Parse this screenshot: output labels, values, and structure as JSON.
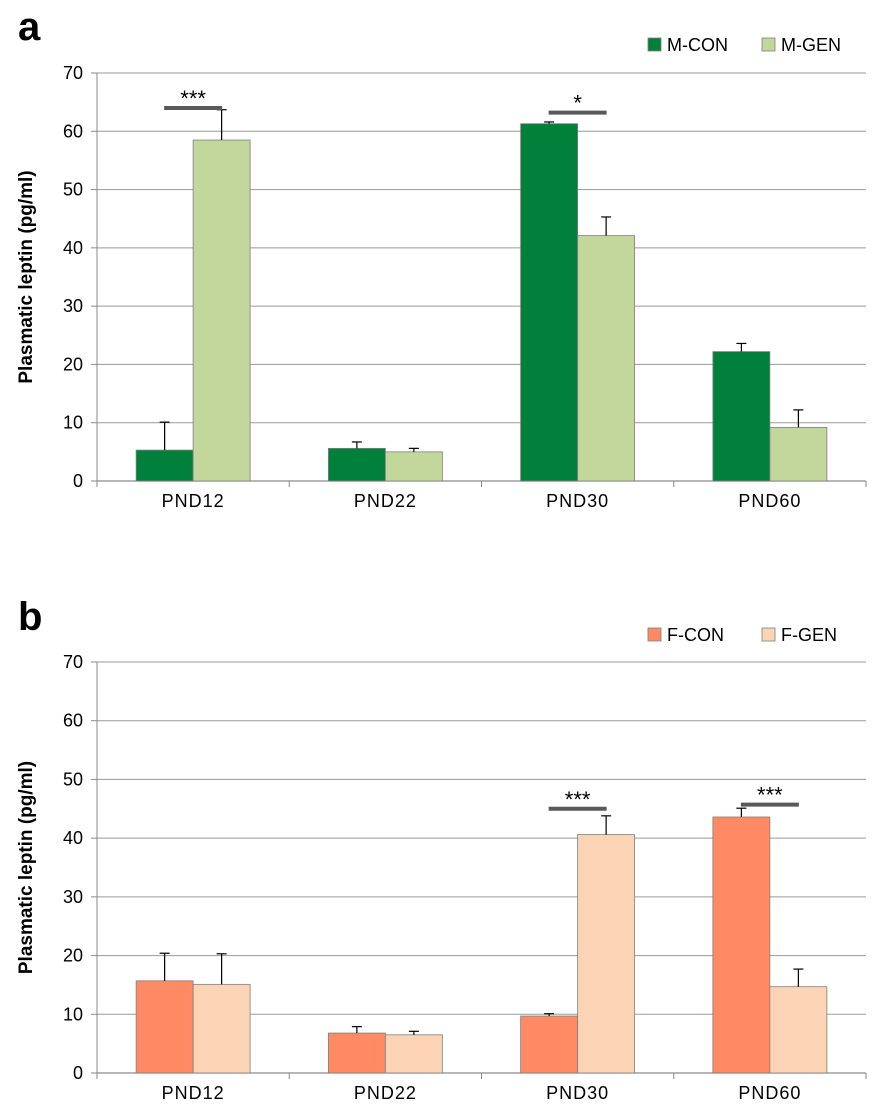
{
  "chart_data": [
    {
      "type": "bar",
      "panel_label": "a",
      "ylabel": "Plasmatic leptin (pg/ml)",
      "ylim": [
        0,
        70
      ],
      "yticks": [
        0,
        10,
        20,
        30,
        40,
        50,
        60,
        70
      ],
      "grid": true,
      "legend_position": "top-right",
      "categories": [
        "PND12",
        "PND22",
        "PND30",
        "PND60"
      ],
      "series": [
        {
          "name": "M-CON",
          "color": "#00803a",
          "values": [
            5.3,
            5.6,
            61.3,
            22.2
          ],
          "errors": [
            4.8,
            1.1,
            0.3,
            1.4
          ]
        },
        {
          "name": "M-GEN",
          "color": "#c3d69b",
          "values": [
            58.5,
            5.0,
            42.1,
            9.2
          ],
          "errors": [
            5.2,
            0.6,
            3.2,
            3.0
          ]
        }
      ],
      "significance": [
        {
          "category": "PND12",
          "label": "***",
          "y": 64
        },
        {
          "category": "PND30",
          "label": "*",
          "y": 63.2
        }
      ]
    },
    {
      "type": "bar",
      "panel_label": "b",
      "ylabel": "Plasmatic leptin (pg/ml)",
      "ylim": [
        0,
        70
      ],
      "yticks": [
        0,
        10,
        20,
        30,
        40,
        50,
        60,
        70
      ],
      "grid": true,
      "legend_position": "top-right",
      "categories": [
        "PND12",
        "PND22",
        "PND30",
        "PND60"
      ],
      "series": [
        {
          "name": "F-CON",
          "color": "#ff8a63",
          "values": [
            15.7,
            6.8,
            9.7,
            43.6
          ],
          "errors": [
            4.7,
            1.1,
            0.4,
            1.5
          ]
        },
        {
          "name": "F-GEN",
          "color": "#fad4b4",
          "values": [
            15.1,
            6.5,
            40.6,
            14.7
          ],
          "errors": [
            5.2,
            0.6,
            3.2,
            3.0
          ]
        }
      ],
      "significance": [
        {
          "category": "PND30",
          "label": "***",
          "y": 45
        },
        {
          "category": "PND60",
          "label": "***",
          "y": 45.7
        }
      ]
    }
  ]
}
